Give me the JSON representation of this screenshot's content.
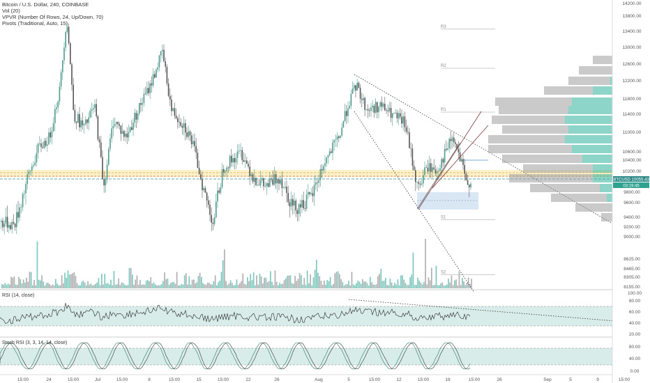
{
  "legend": {
    "symbol": "Bitcoin / U.S. Dollar, 240, COINBASE",
    "vol": "Vol (20)",
    "vpvr": "VPVR (Number Of Rows, 24, Up/Down, 70)",
    "pivots": "Pivots (Traditional, Auto, 15)"
  },
  "indicators": {
    "rsi_label": "RSI (14, close)",
    "stoch_label": "Stoch RSI (3, 3, 14, 14, close)"
  },
  "price_tags": {
    "last_price": "10055.43",
    "symbol_short": "BTCUSD",
    "countdown": "03:19:45"
  },
  "pivots": [
    {
      "label": "R3",
      "price": 13500
    },
    {
      "label": "R2",
      "price": 12500
    },
    {
      "label": "R1",
      "price": 11450
    },
    {
      "label": "S1",
      "price": 9350
    },
    {
      "label": "S2",
      "price": 8350
    }
  ],
  "colors": {
    "up": "#4c9a8a",
    "down": "#555555",
    "vol_up": "#7fc8bf",
    "vol_down": "#b0b0b0",
    "vpvr_up": "#2fb39a",
    "vpvr_down": "#9e9e9e",
    "rsi_band": "#d8ece9",
    "highlight_zone": "#fbf1c7"
  },
  "chart_data": {
    "type": "candlestick",
    "instrument": "Bitcoin / U.S. Dollar",
    "timeframe": "240",
    "exchange": "COINBASE",
    "x_tick_labels": [
      "15:00",
      "24",
      "15:00",
      "Jul",
      "15:00",
      "8",
      "15:00",
      "15",
      "15:00",
      "22",
      "26",
      "Aug",
      "5",
      "15:00",
      "12",
      "15:00",
      "19",
      "15:00",
      "26",
      "Sep",
      "5",
      "9",
      "15:00"
    ],
    "y_tick_labels": [
      "14200.00",
      "13800.00",
      "13400.00",
      "13000.00",
      "12600.00",
      "12200.00",
      "11800.00",
      "11400.00",
      "11000.00",
      "10600.00",
      "10400.00",
      "10200.00",
      "9800.00",
      "9600.00",
      "9400.00",
      "9200.00",
      "9000.00",
      "8625.00",
      "8465.00",
      "8305.00",
      "8155.00"
    ],
    "price_path": [
      {
        "x": 0,
        "price": 9300
      },
      {
        "x": 20,
        "price": 9250
      },
      {
        "x": 40,
        "price": 10100
      },
      {
        "x": 55,
        "price": 10700
      },
      {
        "x": 70,
        "price": 10900
      },
      {
        "x": 85,
        "price": 12000
      },
      {
        "x": 95,
        "price": 13800
      },
      {
        "x": 105,
        "price": 11400
      },
      {
        "x": 120,
        "price": 11100
      },
      {
        "x": 135,
        "price": 11600
      },
      {
        "x": 148,
        "price": 9900
      },
      {
        "x": 162,
        "price": 11300
      },
      {
        "x": 180,
        "price": 10900
      },
      {
        "x": 200,
        "price": 11600
      },
      {
        "x": 215,
        "price": 12100
      },
      {
        "x": 232,
        "price": 12900
      },
      {
        "x": 245,
        "price": 11500
      },
      {
        "x": 262,
        "price": 11200
      },
      {
        "x": 275,
        "price": 10800
      },
      {
        "x": 292,
        "price": 9800
      },
      {
        "x": 305,
        "price": 9300
      },
      {
        "x": 320,
        "price": 10300
      },
      {
        "x": 345,
        "price": 10600
      },
      {
        "x": 362,
        "price": 10100
      },
      {
        "x": 380,
        "price": 9900
      },
      {
        "x": 400,
        "price": 10100
      },
      {
        "x": 420,
        "price": 9550
      },
      {
        "x": 445,
        "price": 9700
      },
      {
        "x": 465,
        "price": 10400
      },
      {
        "x": 485,
        "price": 10900
      },
      {
        "x": 500,
        "price": 11700
      },
      {
        "x": 510,
        "price": 12100
      },
      {
        "x": 525,
        "price": 11500
      },
      {
        "x": 545,
        "price": 11600
      },
      {
        "x": 560,
        "price": 11400
      },
      {
        "x": 580,
        "price": 11200
      },
      {
        "x": 598,
        "price": 9850
      },
      {
        "x": 612,
        "price": 10300
      },
      {
        "x": 625,
        "price": 10200
      },
      {
        "x": 648,
        "price": 10900
      },
      {
        "x": 660,
        "price": 10400
      },
      {
        "x": 668,
        "price": 9950
      },
      {
        "x": 676,
        "price": 10055
      }
    ],
    "pivot_levels": {
      "R3": 13500,
      "R2": 12500,
      "R1": 11450,
      "S1": 9350,
      "S2": 8350
    },
    "rsi": {
      "levels": [
        70,
        30
      ],
      "y_tick_labels": [
        "100.00",
        "80.00",
        "60.00",
        "40.00",
        "20.00"
      ]
    },
    "stoch_rsi": {
      "levels": [
        80,
        20
      ],
      "y_tick_labels": [
        "80.00",
        "40.00",
        "0.00"
      ]
    }
  }
}
